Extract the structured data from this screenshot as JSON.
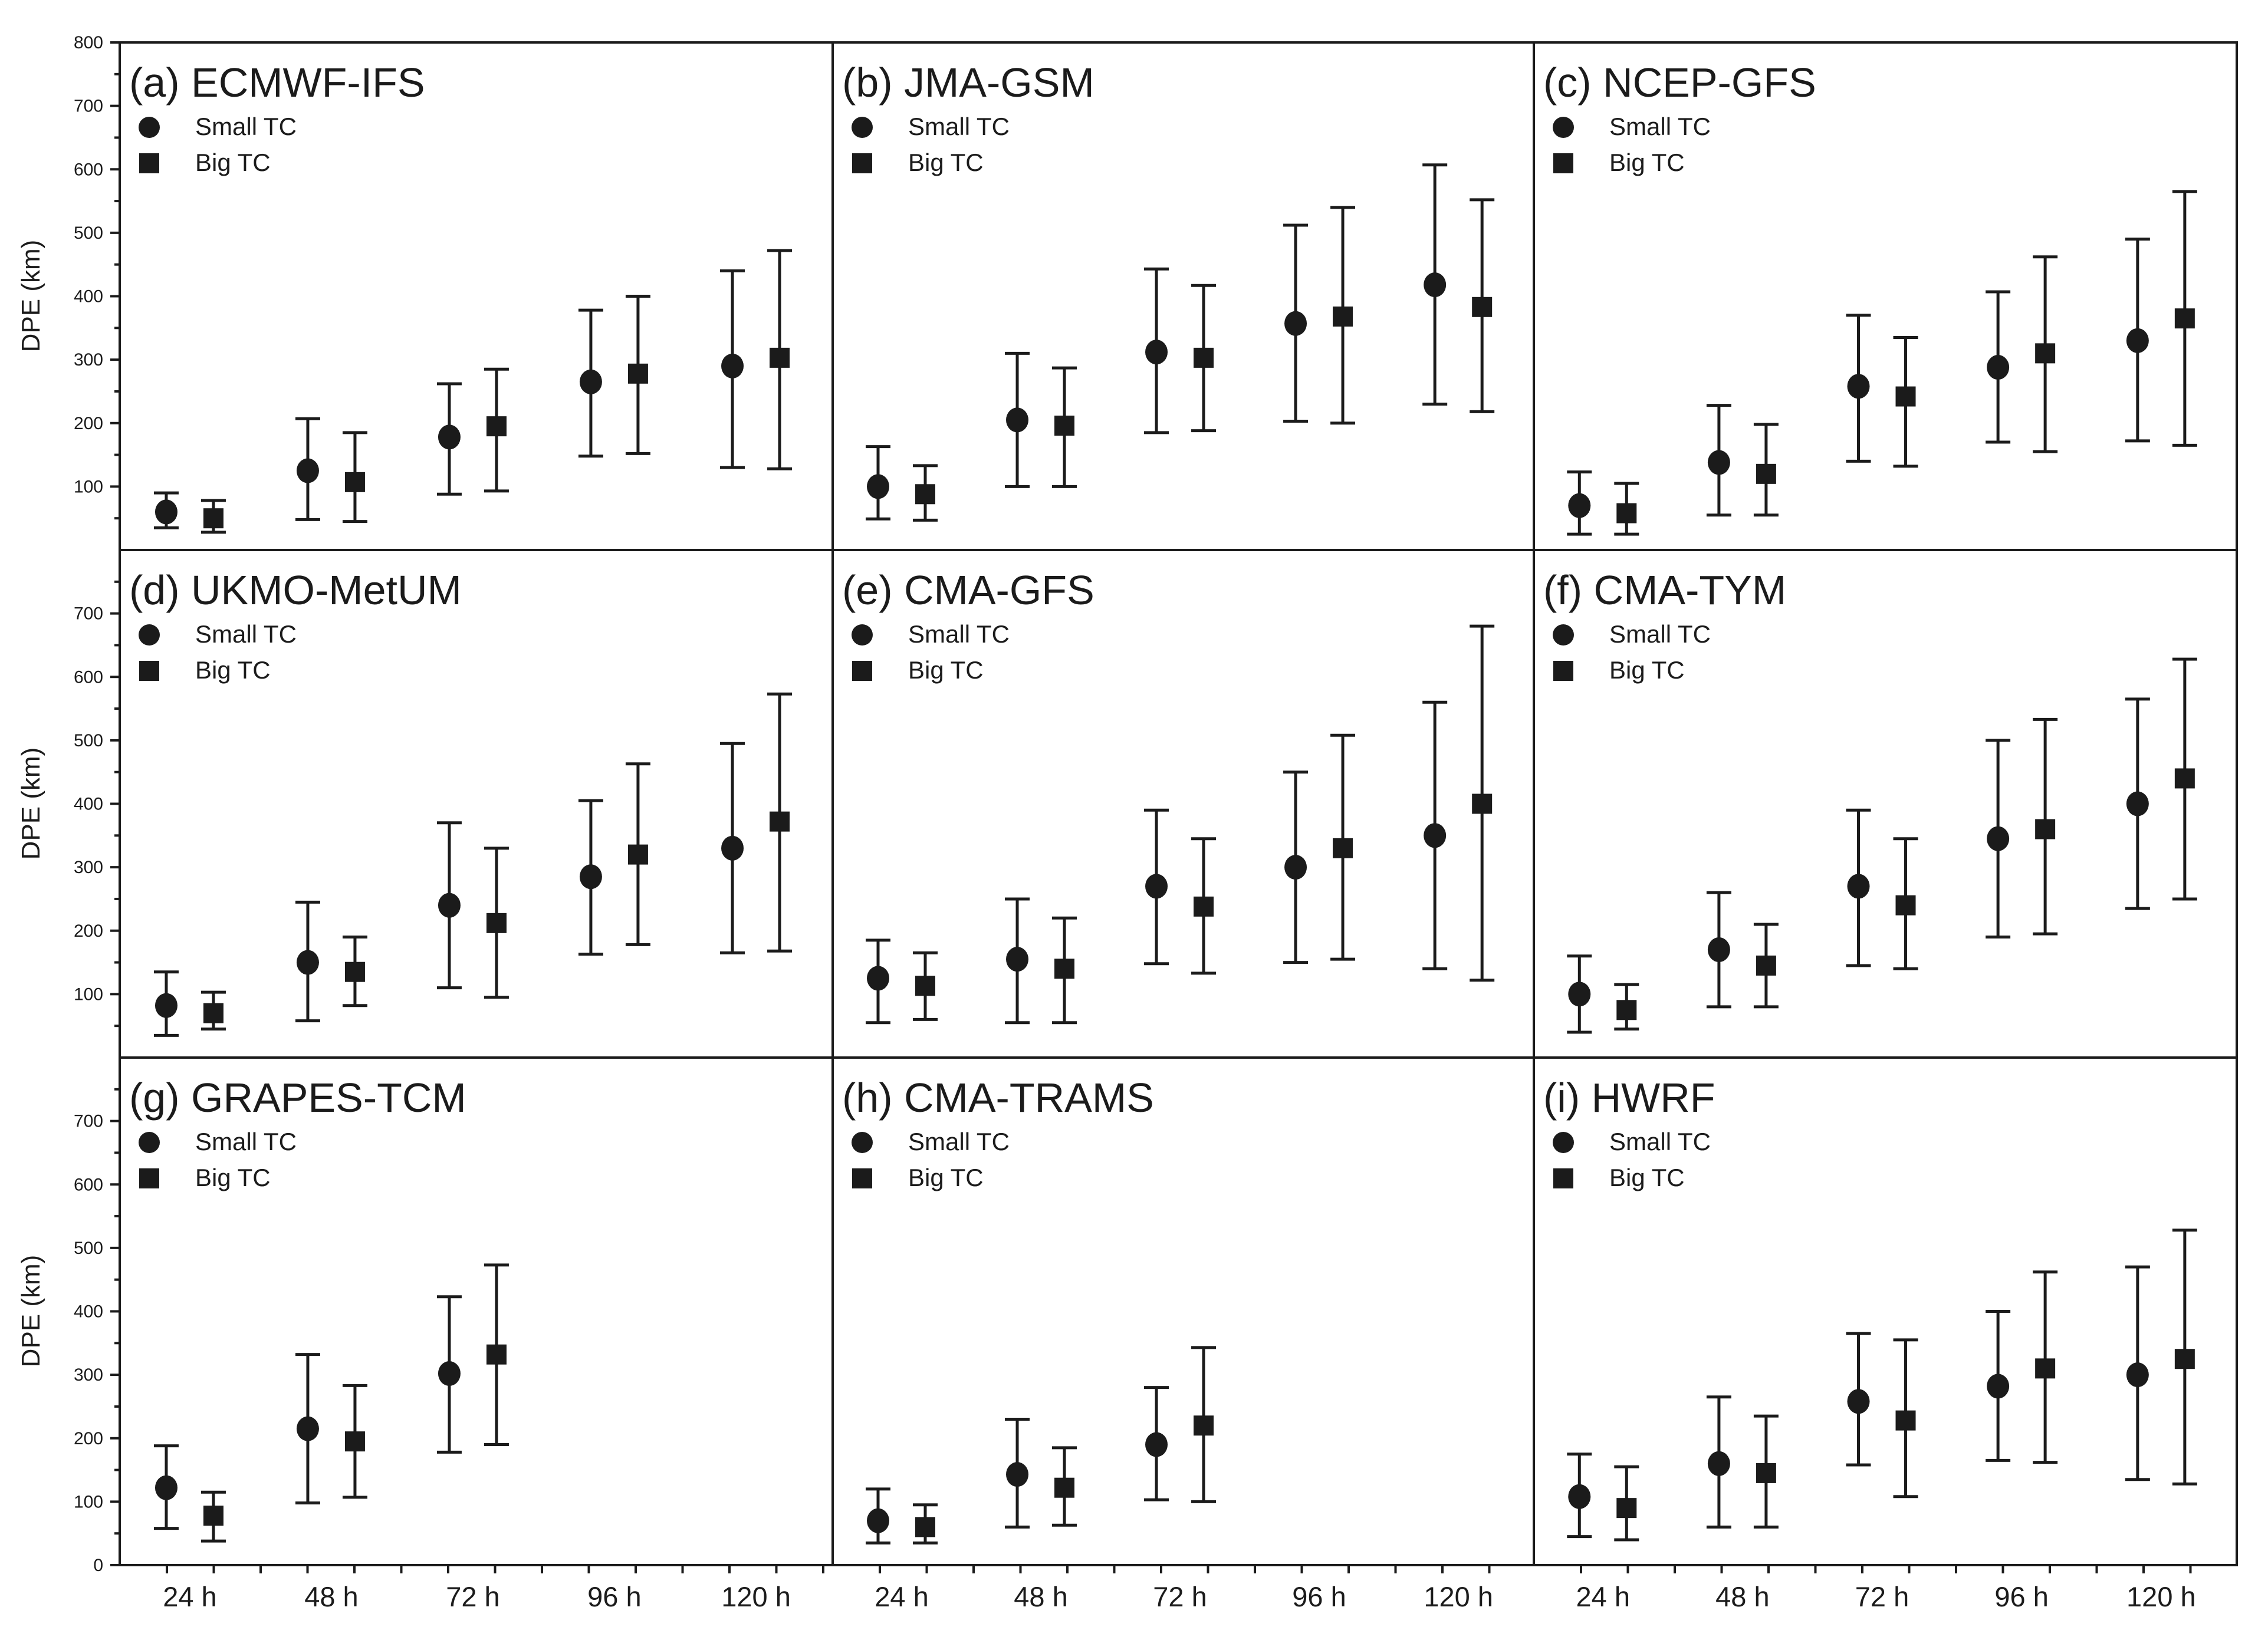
{
  "figure": {
    "background": "#ffffff",
    "ink": "#1b1b1b",
    "y_axis_label": "DPE (km)",
    "x_tick_labels": [
      "24 h",
      "48 h",
      "72 h",
      "96 h",
      "120 h"
    ],
    "legend": [
      {
        "marker": "circle",
        "label": "Small TC"
      },
      {
        "marker": "square",
        "label": "Big TC"
      }
    ],
    "y_axis": {
      "min": 0,
      "max": 800,
      "major_step": 100,
      "minor_step": 50
    },
    "row_y_tick_labels": [
      [
        100,
        200,
        300,
        400,
        500,
        600,
        700,
        800
      ],
      [
        100,
        200,
        300,
        400,
        500,
        600,
        700
      ],
      [
        0,
        100,
        200,
        300,
        400,
        500,
        600,
        700
      ]
    ]
  },
  "chart_data": [
    {
      "id": "a",
      "title": "(a) ECMWF-IFS",
      "type": "scatter",
      "ylim": [
        0,
        800
      ],
      "series": [
        {
          "name": "Small TC",
          "marker": "circle",
          "points": [
            {
              "x": "24 h",
              "mean": 60,
              "lo": 35,
              "hi": 90
            },
            {
              "x": "48 h",
              "mean": 125,
              "lo": 48,
              "hi": 207
            },
            {
              "x": "72 h",
              "mean": 178,
              "lo": 88,
              "hi": 262
            },
            {
              "x": "96 h",
              "mean": 265,
              "lo": 148,
              "hi": 378
            },
            {
              "x": "120 h",
              "mean": 290,
              "lo": 130,
              "hi": 440
            }
          ]
        },
        {
          "name": "Big TC",
          "marker": "square",
          "points": [
            {
              "x": "24 h",
              "mean": 50,
              "lo": 28,
              "hi": 78
            },
            {
              "x": "48 h",
              "mean": 107,
              "lo": 45,
              "hi": 185
            },
            {
              "x": "72 h",
              "mean": 195,
              "lo": 93,
              "hi": 285
            },
            {
              "x": "96 h",
              "mean": 278,
              "lo": 152,
              "hi": 400
            },
            {
              "x": "120 h",
              "mean": 303,
              "lo": 128,
              "hi": 472
            }
          ]
        }
      ]
    },
    {
      "id": "b",
      "title": "(b) JMA-GSM",
      "type": "scatter",
      "ylim": [
        0,
        800
      ],
      "series": [
        {
          "name": "Small TC",
          "marker": "circle",
          "points": [
            {
              "x": "24 h",
              "mean": 100,
              "lo": 49,
              "hi": 163
            },
            {
              "x": "48 h",
              "mean": 205,
              "lo": 100,
              "hi": 310
            },
            {
              "x": "72 h",
              "mean": 312,
              "lo": 185,
              "hi": 443
            },
            {
              "x": "96 h",
              "mean": 357,
              "lo": 203,
              "hi": 512
            },
            {
              "x": "120 h",
              "mean": 418,
              "lo": 230,
              "hi": 607
            }
          ]
        },
        {
          "name": "Big TC",
          "marker": "square",
          "points": [
            {
              "x": "24 h",
              "mean": 88,
              "lo": 47,
              "hi": 133
            },
            {
              "x": "48 h",
              "mean": 196,
              "lo": 100,
              "hi": 287
            },
            {
              "x": "72 h",
              "mean": 303,
              "lo": 188,
              "hi": 417
            },
            {
              "x": "96 h",
              "mean": 368,
              "lo": 200,
              "hi": 540
            },
            {
              "x": "120 h",
              "mean": 383,
              "lo": 218,
              "hi": 552
            }
          ]
        }
      ]
    },
    {
      "id": "c",
      "title": "(c) NCEP-GFS",
      "type": "scatter",
      "ylim": [
        0,
        800
      ],
      "series": [
        {
          "name": "Small TC",
          "marker": "circle",
          "points": [
            {
              "x": "24 h",
              "mean": 70,
              "lo": 25,
              "hi": 123
            },
            {
              "x": "48 h",
              "mean": 138,
              "lo": 55,
              "hi": 228
            },
            {
              "x": "72 h",
              "mean": 258,
              "lo": 140,
              "hi": 370
            },
            {
              "x": "96 h",
              "mean": 288,
              "lo": 170,
              "hi": 407
            },
            {
              "x": "120 h",
              "mean": 330,
              "lo": 172,
              "hi": 490
            }
          ]
        },
        {
          "name": "Big TC",
          "marker": "square",
          "points": [
            {
              "x": "24 h",
              "mean": 58,
              "lo": 25,
              "hi": 105
            },
            {
              "x": "48 h",
              "mean": 120,
              "lo": 55,
              "hi": 198
            },
            {
              "x": "72 h",
              "mean": 242,
              "lo": 132,
              "hi": 335
            },
            {
              "x": "96 h",
              "mean": 310,
              "lo": 155,
              "hi": 462
            },
            {
              "x": "120 h",
              "mean": 365,
              "lo": 165,
              "hi": 565
            }
          ]
        }
      ]
    },
    {
      "id": "d",
      "title": "(d) UKMO-MetUM",
      "type": "scatter",
      "ylim": [
        0,
        800
      ],
      "series": [
        {
          "name": "Small TC",
          "marker": "circle",
          "points": [
            {
              "x": "24 h",
              "mean": 82,
              "lo": 35,
              "hi": 135
            },
            {
              "x": "48 h",
              "mean": 150,
              "lo": 58,
              "hi": 245
            },
            {
              "x": "72 h",
              "mean": 240,
              "lo": 110,
              "hi": 370
            },
            {
              "x": "96 h",
              "mean": 285,
              "lo": 163,
              "hi": 405
            },
            {
              "x": "120 h",
              "mean": 330,
              "lo": 165,
              "hi": 495
            }
          ]
        },
        {
          "name": "Big TC",
          "marker": "square",
          "points": [
            {
              "x": "24 h",
              "mean": 70,
              "lo": 45,
              "hi": 103
            },
            {
              "x": "48 h",
              "mean": 135,
              "lo": 82,
              "hi": 190
            },
            {
              "x": "72 h",
              "mean": 212,
              "lo": 95,
              "hi": 330
            },
            {
              "x": "96 h",
              "mean": 320,
              "lo": 178,
              "hi": 463
            },
            {
              "x": "120 h",
              "mean": 372,
              "lo": 168,
              "hi": 573
            }
          ]
        }
      ]
    },
    {
      "id": "e",
      "title": "(e) CMA-GFS",
      "type": "scatter",
      "ylim": [
        0,
        800
      ],
      "series": [
        {
          "name": "Small TC",
          "marker": "circle",
          "points": [
            {
              "x": "24 h",
              "mean": 125,
              "lo": 55,
              "hi": 185
            },
            {
              "x": "48 h",
              "mean": 155,
              "lo": 55,
              "hi": 250
            },
            {
              "x": "72 h",
              "mean": 270,
              "lo": 148,
              "hi": 390
            },
            {
              "x": "96 h",
              "mean": 300,
              "lo": 150,
              "hi": 450
            },
            {
              "x": "120 h",
              "mean": 350,
              "lo": 140,
              "hi": 560
            }
          ]
        },
        {
          "name": "Big TC",
          "marker": "square",
          "points": [
            {
              "x": "24 h",
              "mean": 113,
              "lo": 60,
              "hi": 165
            },
            {
              "x": "48 h",
              "mean": 140,
              "lo": 55,
              "hi": 220
            },
            {
              "x": "72 h",
              "mean": 238,
              "lo": 133,
              "hi": 345
            },
            {
              "x": "96 h",
              "mean": 330,
              "lo": 155,
              "hi": 508
            },
            {
              "x": "120 h",
              "mean": 400,
              "lo": 122,
              "hi": 680
            }
          ]
        }
      ]
    },
    {
      "id": "f",
      "title": "(f) CMA-TYM",
      "type": "scatter",
      "ylim": [
        0,
        800
      ],
      "series": [
        {
          "name": "Small TC",
          "marker": "circle",
          "points": [
            {
              "x": "24 h",
              "mean": 100,
              "lo": 40,
              "hi": 160
            },
            {
              "x": "48 h",
              "mean": 170,
              "lo": 80,
              "hi": 260
            },
            {
              "x": "72 h",
              "mean": 270,
              "lo": 145,
              "hi": 390
            },
            {
              "x": "96 h",
              "mean": 345,
              "lo": 190,
              "hi": 500
            },
            {
              "x": "120 h",
              "mean": 400,
              "lo": 235,
              "hi": 565
            }
          ]
        },
        {
          "name": "Big TC",
          "marker": "square",
          "points": [
            {
              "x": "24 h",
              "mean": 75,
              "lo": 45,
              "hi": 115
            },
            {
              "x": "48 h",
              "mean": 145,
              "lo": 80,
              "hi": 210
            },
            {
              "x": "72 h",
              "mean": 240,
              "lo": 140,
              "hi": 345
            },
            {
              "x": "96 h",
              "mean": 360,
              "lo": 195,
              "hi": 533
            },
            {
              "x": "120 h",
              "mean": 440,
              "lo": 250,
              "hi": 628
            }
          ]
        }
      ]
    },
    {
      "id": "g",
      "title": "(g) GRAPES-TCM",
      "type": "scatter",
      "ylim": [
        0,
        800
      ],
      "series": [
        {
          "name": "Small TC",
          "marker": "circle",
          "points": [
            {
              "x": "24 h",
              "mean": 122,
              "lo": 58,
              "hi": 188
            },
            {
              "x": "48 h",
              "mean": 215,
              "lo": 98,
              "hi": 332
            },
            {
              "x": "72 h",
              "mean": 302,
              "lo": 178,
              "hi": 423
            }
          ]
        },
        {
          "name": "Big TC",
          "marker": "square",
          "points": [
            {
              "x": "24 h",
              "mean": 78,
              "lo": 38,
              "hi": 115
            },
            {
              "x": "48 h",
              "mean": 195,
              "lo": 107,
              "hi": 283
            },
            {
              "x": "72 h",
              "mean": 332,
              "lo": 190,
              "hi": 473
            }
          ]
        }
      ]
    },
    {
      "id": "h",
      "title": "(h) CMA-TRAMS",
      "type": "scatter",
      "ylim": [
        0,
        800
      ],
      "series": [
        {
          "name": "Small TC",
          "marker": "circle",
          "points": [
            {
              "x": "24 h",
              "mean": 70,
              "lo": 35,
              "hi": 120
            },
            {
              "x": "48 h",
              "mean": 143,
              "lo": 60,
              "hi": 230
            },
            {
              "x": "72 h",
              "mean": 190,
              "lo": 103,
              "hi": 280
            }
          ]
        },
        {
          "name": "Big TC",
          "marker": "square",
          "points": [
            {
              "x": "24 h",
              "mean": 60,
              "lo": 35,
              "hi": 95
            },
            {
              "x": "48 h",
              "mean": 122,
              "lo": 63,
              "hi": 185
            },
            {
              "x": "72 h",
              "mean": 220,
              "lo": 100,
              "hi": 343
            }
          ]
        }
      ]
    },
    {
      "id": "i",
      "title": "(i) HWRF",
      "type": "scatter",
      "ylim": [
        0,
        800
      ],
      "series": [
        {
          "name": "Small TC",
          "marker": "circle",
          "points": [
            {
              "x": "24 h",
              "mean": 108,
              "lo": 45,
              "hi": 175
            },
            {
              "x": "48 h",
              "mean": 160,
              "lo": 60,
              "hi": 265
            },
            {
              "x": "72 h",
              "mean": 258,
              "lo": 158,
              "hi": 365
            },
            {
              "x": "96 h",
              "mean": 282,
              "lo": 165,
              "hi": 400
            },
            {
              "x": "120 h",
              "mean": 300,
              "lo": 135,
              "hi": 470
            }
          ]
        },
        {
          "name": "Big TC",
          "marker": "square",
          "points": [
            {
              "x": "24 h",
              "mean": 90,
              "lo": 40,
              "hi": 155
            },
            {
              "x": "48 h",
              "mean": 145,
              "lo": 60,
              "hi": 235
            },
            {
              "x": "72 h",
              "mean": 228,
              "lo": 108,
              "hi": 355
            },
            {
              "x": "96 h",
              "mean": 310,
              "lo": 162,
              "hi": 462
            },
            {
              "x": "120 h",
              "mean": 325,
              "lo": 128,
              "hi": 528
            }
          ]
        }
      ]
    }
  ]
}
